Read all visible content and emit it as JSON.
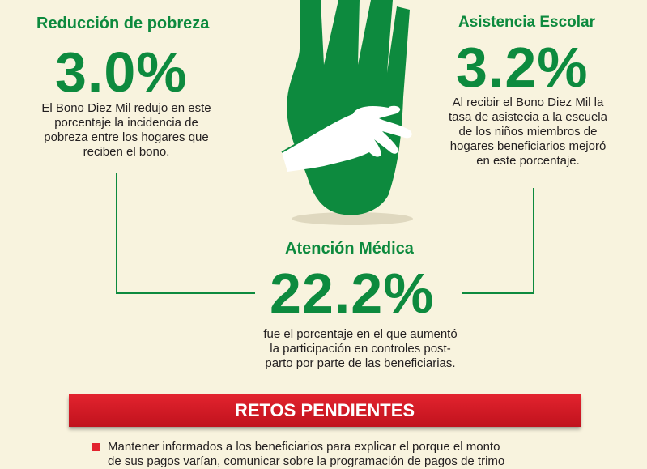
{
  "poverty": {
    "title": "Reducción de pobreza",
    "value": "3.0%",
    "desc": [
      "El Bono Diez Mil redujo en este",
      "porcentaje la incidencia de",
      "pobreza entre los hogares que",
      "reciben el bono."
    ]
  },
  "school": {
    "title": "Asistencia Escolar",
    "value": "3.2%",
    "desc": [
      "Al recibir el Bono Diez Mil la",
      "tasa de asistecia a la escuela",
      "de los niños miembros de",
      "hogares beneficiarios mejoró",
      "en este porcentaje."
    ]
  },
  "medical": {
    "title": "Atención Médica",
    "value": "22.2%",
    "desc": [
      "fue el porcentaje en el que aumentó",
      "la participación en controles post-",
      "parto por parte de las beneficiarias."
    ]
  },
  "banner": {
    "label": "RETOS PENDIENTES"
  },
  "challenges": [
    {
      "line1": "Mantener informados a los beneficiarios para explicar el porque el monto",
      "line2": "de sus pagos varían, comunicar sobre la programación de pagos de trimo"
    }
  ],
  "colors": {
    "green": "#0d8a3e",
    "red": "#e2232e",
    "background": "#f8f3de"
  },
  "icons": {
    "hands": "hands-icon"
  }
}
